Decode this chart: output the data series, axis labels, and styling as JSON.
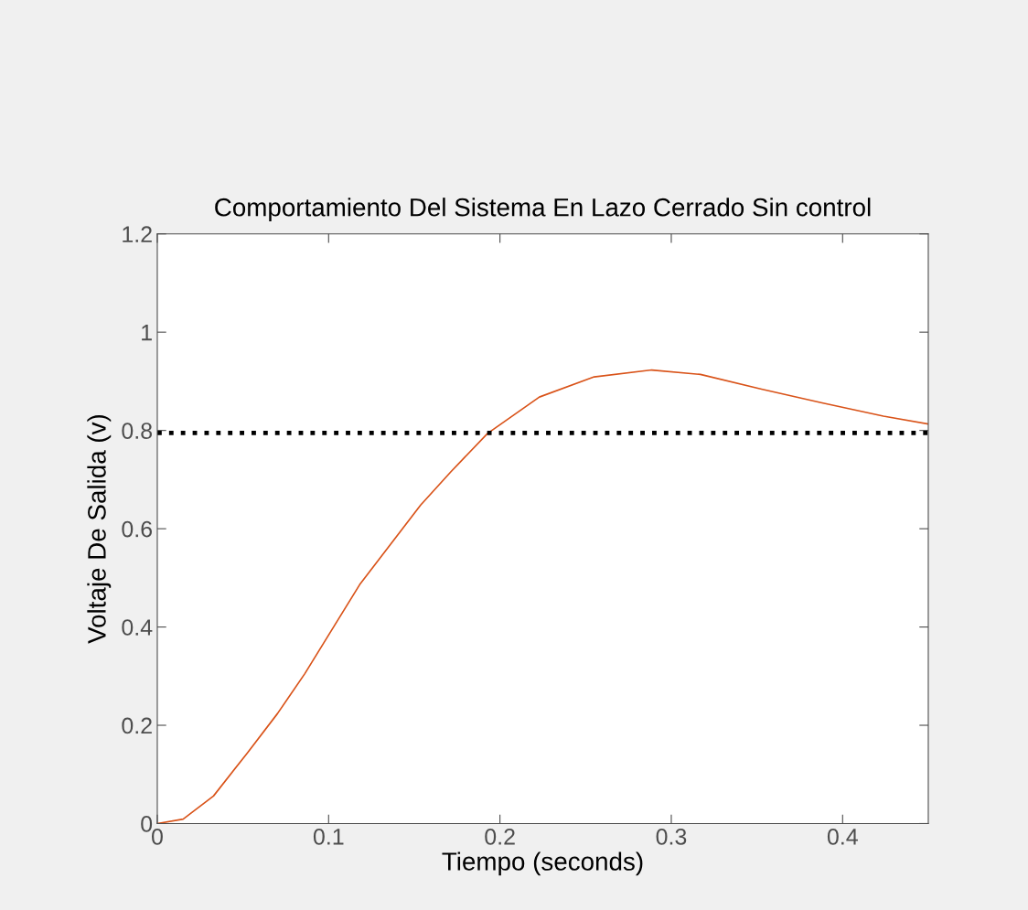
{
  "chart_data": {
    "type": "line",
    "title": "Comportamiento Del Sistema En Lazo Cerrado Sin control",
    "xlabel": "Tiempo (seconds)",
    "ylabel": "Voltaje De Salida (v)",
    "series": [
      {
        "color": "#d95319",
        "x": [
          0,
          0.0151,
          0.0328,
          0.0524,
          0.0702,
          0.0861,
          0.1004,
          0.1181,
          0.1359,
          0.1537,
          0.1714,
          0.1928,
          0.223,
          0.255,
          0.2886,
          0.317,
          0.3527,
          0.388,
          0.4238,
          0.45
        ],
        "values": [
          0,
          0.009,
          0.056,
          0.143,
          0.224,
          0.305,
          0.386,
          0.486,
          0.567,
          0.648,
          0.716,
          0.794,
          0.868,
          0.909,
          0.923,
          0.914,
          0.884,
          0.856,
          0.829,
          0.813
        ]
      }
    ],
    "ref_lines": [
      {
        "axis": "y",
        "value": 0.795,
        "color": "#000000",
        "line_style": "dotted"
      }
    ],
    "xlim": [
      0,
      0.45
    ],
    "xticks": [
      0,
      0.1,
      0.2,
      0.3,
      0.4
    ],
    "ylim": [
      0,
      1.2
    ],
    "yticks": [
      0,
      0.2,
      0.4,
      0.6,
      0.8,
      1,
      1.2
    ],
    "grid": false,
    "line_style": "solid",
    "marker": "none"
  }
}
